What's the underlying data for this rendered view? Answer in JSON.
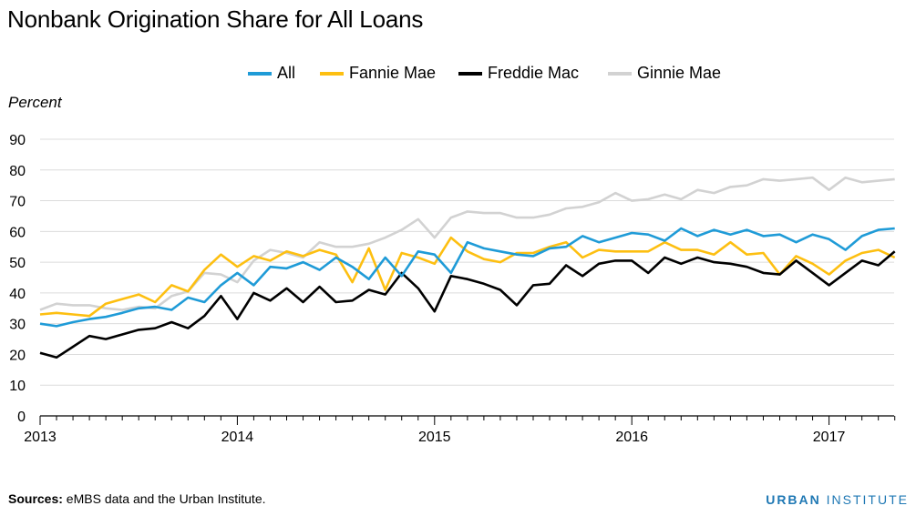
{
  "chart_data": {
    "type": "line",
    "title": "Nonbank Origination Share for All Loans",
    "ylabel": "Percent",
    "xlabel": "",
    "ylim": [
      0,
      90
    ],
    "yticks": [
      0,
      10,
      20,
      30,
      40,
      50,
      60,
      70,
      80,
      90
    ],
    "xticks": [
      {
        "label": "2013",
        "x": 2013.0
      },
      {
        "label": "2014",
        "x": 2014.0
      },
      {
        "label": "2015",
        "x": 2015.0
      },
      {
        "label": "2016",
        "x": 2016.0
      },
      {
        "label": "2017",
        "x": 2017.0
      }
    ],
    "xlim": [
      2013.0,
      2017.33
    ],
    "grid": true,
    "legend_position": "top",
    "x": [
      2013.0,
      2013.0833,
      2013.1667,
      2013.25,
      2013.3333,
      2013.4167,
      2013.5,
      2013.5833,
      2013.6667,
      2013.75,
      2013.8333,
      2013.9167,
      2014.0,
      2014.0833,
      2014.1667,
      2014.25,
      2014.3333,
      2014.4167,
      2014.5,
      2014.5833,
      2014.6667,
      2014.75,
      2014.8333,
      2014.9167,
      2015.0,
      2015.0833,
      2015.1667,
      2015.25,
      2015.3333,
      2015.4167,
      2015.5,
      2015.5833,
      2015.6667,
      2015.75,
      2015.8333,
      2015.9167,
      2016.0,
      2016.0833,
      2016.1667,
      2016.25,
      2016.3333,
      2016.4167,
      2016.5,
      2016.5833,
      2016.6667,
      2016.75,
      2016.8333,
      2016.9167,
      2017.0,
      2017.0833,
      2017.1667,
      2017.25,
      2017.3333
    ],
    "series": [
      {
        "name": "All",
        "color": "#1f9bd7",
        "values": [
          30,
          29.2,
          30.5,
          31.5,
          32.2,
          33.5,
          35,
          35.5,
          34.5,
          38.5,
          37,
          42.5,
          46.5,
          42.5,
          48.5,
          48,
          50,
          47.5,
          51.5,
          48.5,
          44.5,
          51.5,
          45.5,
          53.5,
          52.5,
          46.5,
          56.5,
          54.5,
          53.5,
          52.5,
          52,
          54.5,
          55,
          58.5,
          56.5,
          58,
          59.5,
          59,
          57,
          61,
          58.5,
          60.5,
          59,
          60.5,
          58.5,
          59,
          56.5,
          59,
          57.5,
          54,
          58.5,
          60.5,
          61
        ]
      },
      {
        "name": "Fannie Mae",
        "color": "#fdbf11",
        "values": [
          33,
          33.5,
          33,
          32.5,
          36.5,
          38,
          39.5,
          37,
          42.5,
          40.5,
          47.5,
          52.5,
          48.5,
          52,
          50.5,
          53.5,
          52,
          54,
          52.5,
          43.5,
          54.5,
          41,
          53,
          51.5,
          49.5,
          58,
          53.5,
          51,
          50,
          53,
          53,
          55,
          56.5,
          51.5,
          54,
          53.5,
          53.5,
          53.5,
          56.5,
          54,
          54,
          52.5,
          56.5,
          52.5,
          53,
          46,
          52,
          49.5,
          46,
          50.5,
          53,
          54,
          51.5
        ]
      },
      {
        "name": "Freddie Mac",
        "color": "#000000",
        "values": [
          20.5,
          19,
          22.5,
          26,
          25,
          26.5,
          28,
          28.5,
          30.5,
          28.5,
          32.5,
          39,
          31.5,
          40,
          37.5,
          41.5,
          37,
          42,
          37,
          37.5,
          41,
          39.5,
          46.5,
          41.5,
          34,
          45.5,
          44.5,
          43,
          41,
          36,
          42.5,
          43,
          49,
          45.5,
          49.5,
          50.5,
          50.5,
          46.5,
          51.5,
          49.5,
          51.5,
          50,
          49.5,
          48.5,
          46.5,
          46,
          50.5,
          46.5,
          42.5,
          46.5,
          50.5,
          49,
          53.5
        ]
      },
      {
        "name": "Ginnie Mae",
        "color": "#d2d2d2",
        "values": [
          34.5,
          36.5,
          36,
          36,
          35,
          34.5,
          35.5,
          35,
          39,
          40.5,
          46.5,
          46,
          43.5,
          50.5,
          54,
          53,
          51.5,
          56.5,
          55,
          55,
          56,
          58,
          60.5,
          64,
          58,
          64.5,
          66.5,
          66,
          66,
          64.5,
          64.5,
          65.5,
          67.5,
          68,
          69.5,
          72.5,
          70,
          70.5,
          72,
          70.5,
          73.5,
          72.5,
          74.5,
          75,
          77,
          76.5,
          77,
          77.5,
          73.5,
          77.5,
          76,
          76.5,
          77
        ]
      }
    ]
  },
  "footer": {
    "sources_label": "Sources:",
    "sources_text": " eMBS data and the Urban Institute.",
    "brand_strong": "URBAN",
    "brand_rest": " INSTITUTE"
  }
}
